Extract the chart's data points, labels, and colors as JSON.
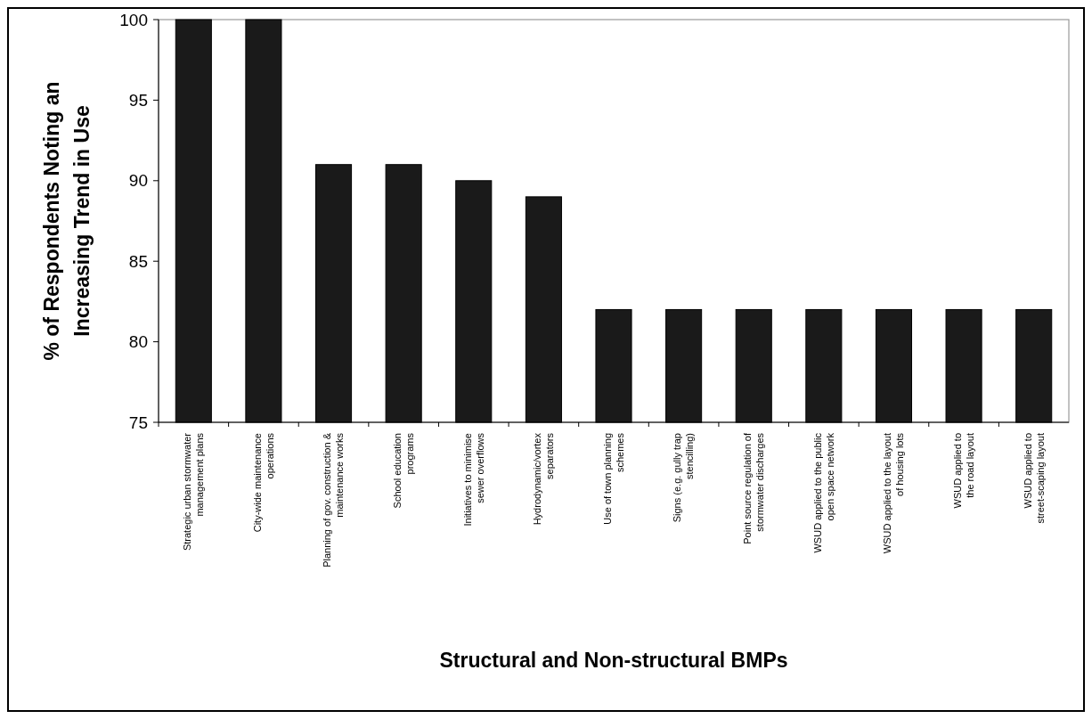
{
  "chart_data": {
    "type": "bar",
    "xlabel": "Structural and Non-structural BMPs",
    "ylabel": "% of Respondents Noting an\nIncreasing Trend in Use",
    "categories": [
      "Strategic urban stormwater\nmanagement plans",
      "City-wide maintenance\noperations",
      "Planning of gov. construction &\nmaintenance works",
      "School education\nprograms",
      "Initiatives to minimise\nsewer overflows",
      "Hydrodynamic/vortex\nseparators",
      "Use of town planning\nschemes",
      "Signs (e.g. gully trap\nstencilling)",
      "Point source regulation of\nstormwater discharges",
      "WSUD applied to the public\nopen space network",
      "WSUD applied to the layout\nof housing lots",
      "WSUD applied to\nthe road layout",
      "WSUD applied to\nstreet-scaping layout"
    ],
    "values": [
      100,
      100,
      91,
      91,
      90,
      89,
      82,
      82,
      82,
      82,
      82,
      82,
      82
    ],
    "color": "#1a1a1a",
    "ylim": [
      75,
      100
    ],
    "yticks": [
      75,
      80,
      85,
      90,
      95,
      100
    ]
  }
}
